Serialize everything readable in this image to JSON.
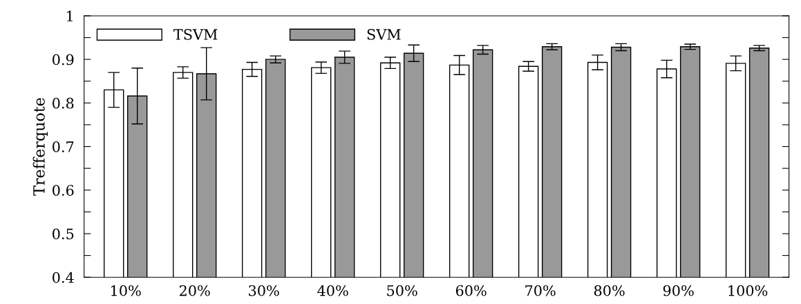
{
  "chart_data": {
    "type": "bar",
    "ylabel": "Trefferquote",
    "categories": [
      "10%",
      "20%",
      "30%",
      "40%",
      "50%",
      "60%",
      "70%",
      "80%",
      "90%",
      "100%"
    ],
    "series": [
      {
        "name": "TSVM",
        "color": "#ffffff",
        "values": [
          0.83,
          0.87,
          0.877,
          0.881,
          0.892,
          0.887,
          0.884,
          0.893,
          0.878,
          0.891
        ],
        "errors": [
          0.04,
          0.013,
          0.016,
          0.013,
          0.013,
          0.022,
          0.011,
          0.017,
          0.02,
          0.017
        ]
      },
      {
        "name": "SVM",
        "color": "#999999",
        "values": [
          0.816,
          0.867,
          0.9,
          0.905,
          0.914,
          0.922,
          0.929,
          0.928,
          0.929,
          0.926
        ],
        "errors": [
          0.064,
          0.06,
          0.008,
          0.014,
          0.019,
          0.01,
          0.007,
          0.008,
          0.006,
          0.006
        ]
      }
    ],
    "ylim": [
      0.4,
      1
    ],
    "yticks": [
      0.4,
      {
        "value": 0.45,
        "label": null
      },
      0.5,
      {
        "value": 0.55,
        "label": null
      },
      0.6,
      {
        "value": 0.65,
        "label": null
      },
      0.7,
      {
        "value": 0.75,
        "label": null
      },
      0.8,
      {
        "value": 0.85,
        "label": null
      },
      0.9,
      {
        "value": 0.95,
        "label": null
      },
      1
    ],
    "legend": "top left",
    "grid": false
  }
}
